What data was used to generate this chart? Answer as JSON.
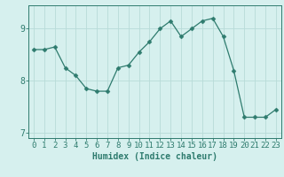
{
  "x": [
    0,
    1,
    2,
    3,
    4,
    5,
    6,
    7,
    8,
    9,
    10,
    11,
    12,
    13,
    14,
    15,
    16,
    17,
    18,
    19,
    20,
    21,
    22,
    23
  ],
  "y": [
    8.6,
    8.6,
    8.65,
    8.25,
    8.1,
    7.85,
    7.8,
    7.8,
    8.25,
    8.3,
    8.55,
    8.75,
    9.0,
    9.15,
    8.85,
    9.0,
    9.15,
    9.2,
    8.85,
    8.2,
    7.3,
    7.3,
    7.3,
    7.45
  ],
  "line_color": "#2e7b6e",
  "marker": "D",
  "marker_size": 2.5,
  "bg_color": "#d6f0ee",
  "grid_color": "#b8dbd8",
  "axis_color": "#2e7b6e",
  "xlabel": "Humidex (Indice chaleur)",
  "xlabel_fontsize": 7,
  "tick_fontsize": 6.5,
  "ylim": [
    6.9,
    9.45
  ],
  "xlim": [
    -0.5,
    23.5
  ],
  "yticks": [
    7,
    8,
    9
  ],
  "xticks": [
    0,
    1,
    2,
    3,
    4,
    5,
    6,
    7,
    8,
    9,
    10,
    11,
    12,
    13,
    14,
    15,
    16,
    17,
    18,
    19,
    20,
    21,
    22,
    23
  ]
}
